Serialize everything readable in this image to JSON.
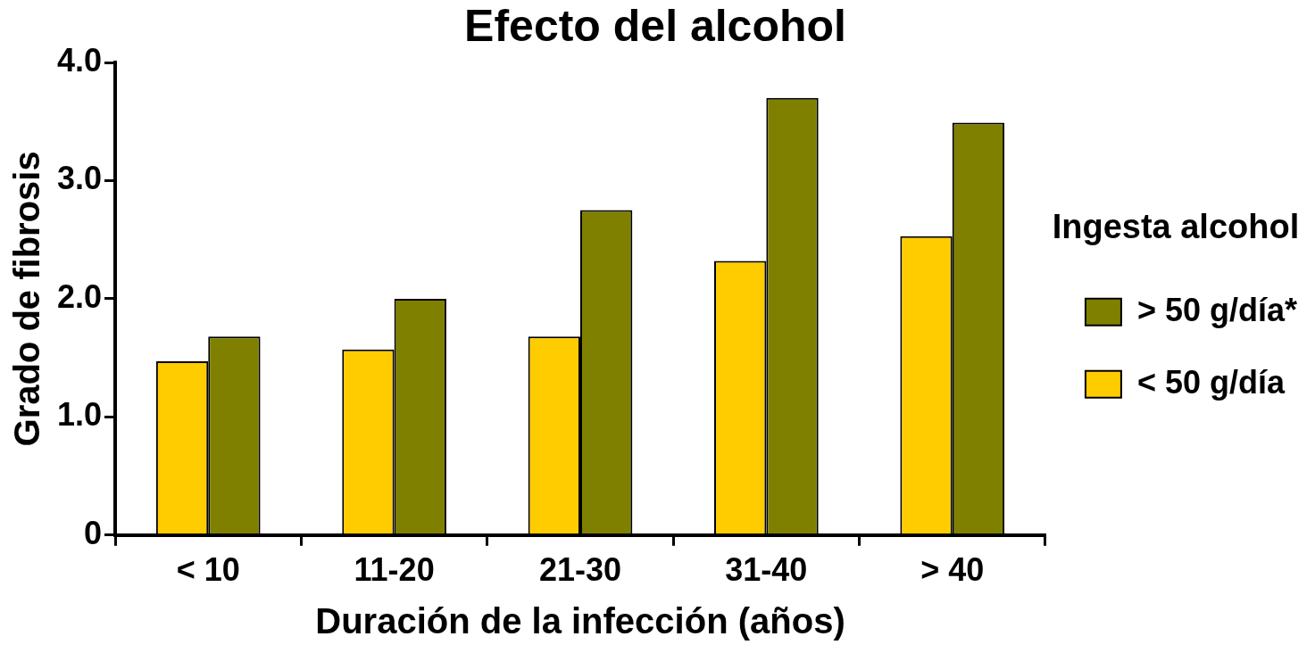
{
  "chart_data": {
    "type": "bar",
    "title": "Efecto del alcohol",
    "xlabel": "Duración de la infección (años)",
    "ylabel": "Grado de fibrosis",
    "legend_title": "Ingesta alcohol",
    "categories": [
      "< 10",
      "11-20",
      "21-30",
      "31-40",
      "> 40"
    ],
    "series": [
      {
        "name": "< 50 g/día",
        "color": "#ffcc00",
        "values": [
          1.47,
          1.57,
          1.68,
          2.32,
          2.53
        ]
      },
      {
        "name": "> 50 g/día*",
        "color": "#808000",
        "values": [
          1.68,
          2.0,
          2.75,
          3.7,
          3.49
        ]
      }
    ],
    "ylim": [
      0,
      4
    ],
    "yticks": [
      {
        "value": 0,
        "label": "0"
      },
      {
        "value": 1,
        "label": "1.0"
      },
      {
        "value": 2,
        "label": "2.0"
      },
      {
        "value": 3,
        "label": "3.0"
      },
      {
        "value": 4,
        "label": "4.0"
      }
    ],
    "grid": false,
    "legend": "right"
  }
}
